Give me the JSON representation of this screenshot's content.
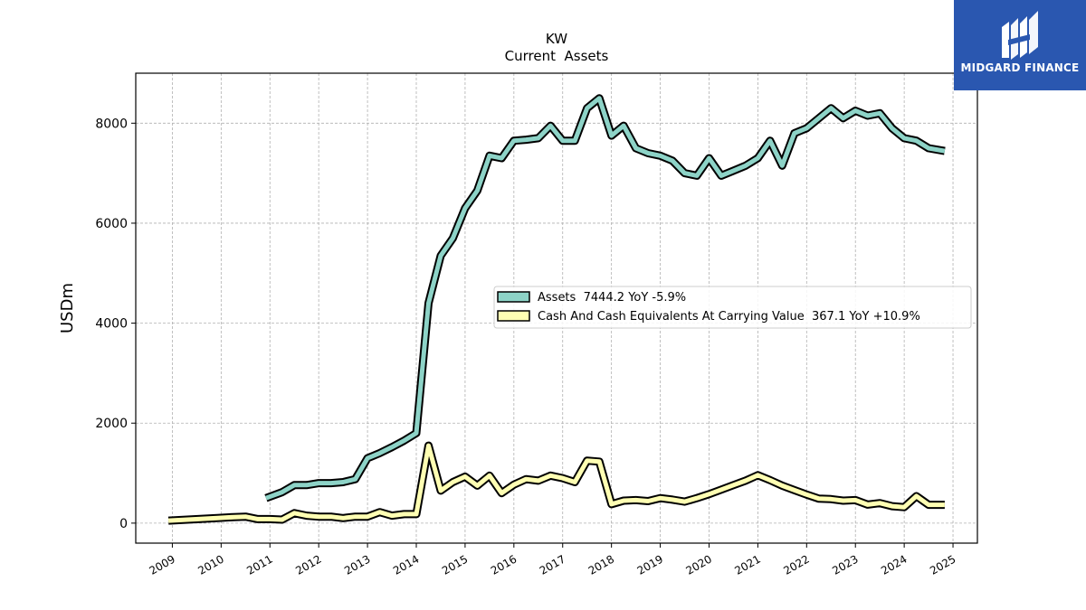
{
  "brand": {
    "name": "MIDGARD FINANCE",
    "color": "#2a57b0",
    "icon": "midgard-logo-icon"
  },
  "chart_data": {
    "type": "line",
    "title": "KW",
    "subtitle": "Current  Assets",
    "ylabel": "USDm",
    "xlabel": "",
    "ylim": [
      -400,
      9000
    ],
    "xlim": [
      2008.25,
      2025.5
    ],
    "yticks": [
      0,
      2000,
      4000,
      6000,
      8000
    ],
    "xticks": [
      "2009",
      "2010",
      "2011",
      "2012",
      "2013",
      "2014",
      "2015",
      "2016",
      "2017",
      "2018",
      "2019",
      "2020",
      "2021",
      "2022",
      "2023",
      "2024",
      "2025"
    ],
    "grid": true,
    "legend_position": "center-right",
    "series": [
      {
        "name": "Assets  7444.2 YoY -5.9%",
        "color": "#8dd3c7",
        "x": [
          2010.92,
          2011.25,
          2011.5,
          2011.75,
          2012.0,
          2012.25,
          2012.5,
          2012.75,
          2013.0,
          2013.25,
          2013.5,
          2013.75,
          2014.0,
          2014.25,
          2014.5,
          2014.75,
          2015.0,
          2015.25,
          2015.5,
          2015.75,
          2016.0,
          2016.25,
          2016.5,
          2016.75,
          2017.0,
          2017.25,
          2017.5,
          2017.75,
          2018.0,
          2018.25,
          2018.5,
          2018.75,
          2019.0,
          2019.25,
          2019.5,
          2019.75,
          2020.0,
          2020.25,
          2020.5,
          2020.75,
          2021.0,
          2021.25,
          2021.5,
          2021.75,
          2022.0,
          2022.25,
          2022.5,
          2022.75,
          2023.0,
          2023.25,
          2023.5,
          2023.75,
          2024.0,
          2024.25,
          2024.5,
          2024.83
        ],
        "values": [
          500,
          620,
          760,
          760,
          800,
          800,
          820,
          880,
          1300,
          1400,
          1520,
          1650,
          1800,
          4400,
          5350,
          5700,
          6300,
          6650,
          7350,
          7300,
          7650,
          7670,
          7700,
          7950,
          7650,
          7650,
          8300,
          8500,
          7750,
          7950,
          7500,
          7400,
          7350,
          7250,
          7000,
          6950,
          7300,
          6950,
          7050,
          7150,
          7300,
          7650,
          7150,
          7800,
          7900,
          8100,
          8300,
          8100,
          8250,
          8150,
          8200,
          7900,
          7700,
          7650,
          7500,
          7444.2
        ]
      },
      {
        "name": "Cash And Cash Equivalents At Carrying Value  367.1 YoY +10.9%",
        "color": "#ffffb3",
        "x": [
          2008.92,
          2009.92,
          2010.25,
          2010.5,
          2010.75,
          2011.0,
          2011.25,
          2011.5,
          2011.75,
          2012.0,
          2012.25,
          2012.5,
          2012.75,
          2013.0,
          2013.25,
          2013.5,
          2013.75,
          2014.0,
          2014.25,
          2014.5,
          2014.75,
          2015.0,
          2015.25,
          2015.5,
          2015.75,
          2016.0,
          2016.25,
          2016.5,
          2016.75,
          2017.0,
          2017.25,
          2017.5,
          2017.75,
          2018.0,
          2018.25,
          2018.5,
          2018.75,
          2019.0,
          2019.25,
          2019.5,
          2019.75,
          2020.0,
          2020.25,
          2020.5,
          2020.75,
          2021.0,
          2021.25,
          2021.5,
          2021.75,
          2022.0,
          2022.25,
          2022.5,
          2022.75,
          2023.0,
          2023.25,
          2023.5,
          2023.75,
          2024.0,
          2024.25,
          2024.5,
          2024.83
        ],
        "values": [
          50,
          100,
          120,
          130,
          80,
          80,
          70,
          200,
          150,
          130,
          130,
          100,
          130,
          130,
          220,
          150,
          180,
          180,
          1550,
          650,
          820,
          930,
          750,
          950,
          600,
          770,
          880,
          850,
          950,
          900,
          820,
          1250,
          1230,
          380,
          450,
          460,
          440,
          500,
          470,
          430,
          500,
          580,
          670,
          760,
          850,
          960,
          860,
          750,
          660,
          570,
          490,
          480,
          450,
          460,
          370,
          400,
          340,
          320,
          540,
          367.1,
          367.1
        ]
      }
    ]
  }
}
